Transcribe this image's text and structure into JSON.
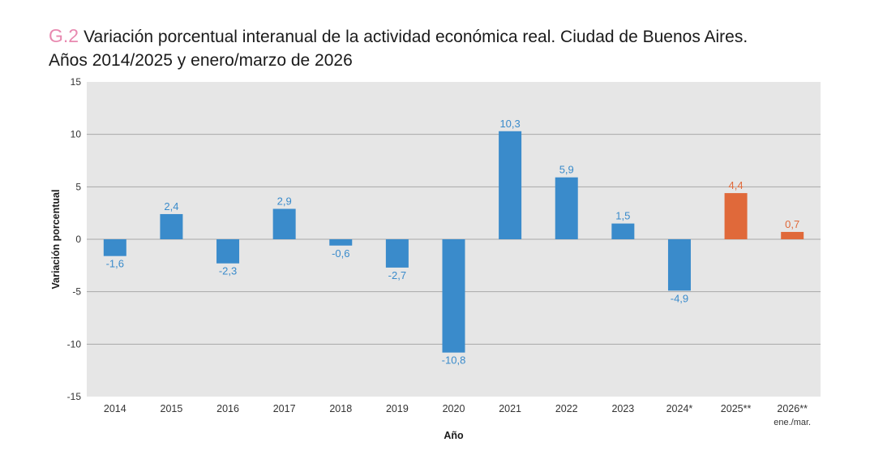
{
  "title": {
    "code": "G.2",
    "line1": "Variación porcentual interanual de la actividad económica real. Ciudad de Buenos Aires.",
    "line2": "Años 2014/2025 y enero/marzo de 2026"
  },
  "colors": {
    "observed": "#3a8bcb",
    "estimated": "#e0693a",
    "plot_background": "#e6e6e6",
    "gridline": "#a8a8a8"
  },
  "chart_data": {
    "type": "bar",
    "xlabel": "Año",
    "ylabel": "Variación porcentual",
    "ylim": [
      -15,
      15
    ],
    "yticks": [
      15,
      10,
      5,
      0,
      -5,
      -10,
      -15
    ],
    "grid": true,
    "categories": [
      "2014",
      "2015",
      "2016",
      "2017",
      "2018",
      "2019",
      "2020",
      "2021",
      "2022",
      "2023",
      "2024*",
      "2025**",
      "2026**"
    ],
    "category_sublabels": [
      "",
      "",
      "",
      "",
      "",
      "",
      "",
      "",
      "",
      "",
      "",
      "",
      "ene./mar."
    ],
    "values": [
      -1.6,
      2.4,
      -2.3,
      2.9,
      -0.6,
      -2.7,
      -10.8,
      10.3,
      5.9,
      1.5,
      -4.9,
      4.4,
      0.7
    ],
    "value_labels": [
      "-1,6",
      "2,4",
      "-2,3",
      "2,9",
      "-0,6",
      "-2,7",
      "-10,8",
      "10,3",
      "5,9",
      "1,5",
      "-4,9",
      "4,4",
      "0,7"
    ],
    "bar_color_keys": [
      "observed",
      "observed",
      "observed",
      "observed",
      "observed",
      "observed",
      "observed",
      "observed",
      "observed",
      "observed",
      "observed",
      "estimated",
      "estimated"
    ]
  }
}
